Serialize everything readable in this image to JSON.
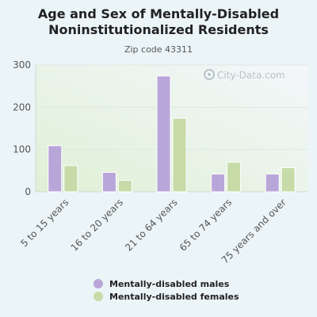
{
  "chart_data": {
    "type": "bar",
    "title_line1": "Age and Sex of Mentally-Disabled",
    "title_line2": "Noninstitutionalized Residents",
    "subtitle": "Zip code 43311",
    "categories": [
      "5 to 15 years",
      "16 to 20 years",
      "21 to 64 years",
      "65 to 74 years",
      "75 years and over"
    ],
    "series": [
      {
        "name": "Mentally-disabled males",
        "color": "#b9a6d9",
        "values": [
          109,
          46,
          274,
          42,
          42
        ]
      },
      {
        "name": "Mentally-disabled females",
        "color": "#c6dba8",
        "values": [
          62,
          27,
          174,
          70,
          57
        ]
      }
    ],
    "ylim": [
      0,
      300
    ],
    "yticks": [
      0,
      100,
      200,
      300
    ],
    "grid": true,
    "legend_position": "bottom"
  },
  "watermark": "City-Data.com"
}
